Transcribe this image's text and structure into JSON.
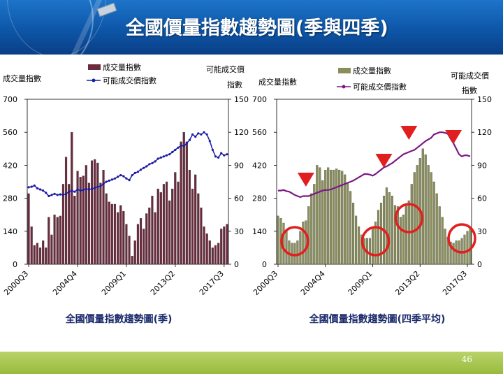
{
  "slide": {
    "title": "全國價量指數趨勢圖(季與四季)",
    "page_number": "46"
  },
  "colors": {
    "banner": "#0d56a8",
    "footer": "#a6c44d",
    "left_bar": "#6b2a3d",
    "left_line": "#1a1aa6",
    "right_bar": "#8a8f5a",
    "right_line": "#7a1a82",
    "marker_red": "#e21f1f"
  },
  "chart_data": [
    {
      "type": "bar",
      "title": "全國價量指數趨勢圖(季)",
      "ylabel": "成交量指數",
      "y2label": "可能成交價指數",
      "ylim": [
        0,
        700
      ],
      "y2lim": [
        0,
        150
      ],
      "yticks": [
        "0",
        "140",
        "280",
        "420",
        "560",
        "700"
      ],
      "y2ticks": [
        "0",
        "30",
        "60",
        "90",
        "120",
        "150"
      ],
      "x_tick_labels": [
        "2000Q3",
        "2004Q4",
        "2009Q1",
        "2013Q2",
        "2017Q3"
      ],
      "grid": false,
      "legend_position": "top",
      "series": [
        {
          "name": "成交量指數",
          "type": "bar",
          "axis": "left",
          "values": [
            300,
            160,
            80,
            90,
            70,
            100,
            70,
            200,
            125,
            210,
            200,
            205,
            340,
            455,
            340,
            560,
            290,
            395,
            370,
            375,
            420,
            345,
            440,
            445,
            430,
            345,
            400,
            300,
            265,
            255,
            255,
            220,
            250,
            225,
            170,
            120,
            35,
            100,
            170,
            195,
            150,
            215,
            240,
            290,
            220,
            320,
            305,
            340,
            350,
            270,
            320,
            390,
            350,
            520,
            560,
            520,
            400,
            320,
            380,
            300,
            240,
            160,
            130,
            100,
            70,
            80,
            90,
            150,
            160,
            170
          ]
        },
        {
          "name": "可能成交價指數",
          "type": "line",
          "axis": "right",
          "values": [
            70,
            70.5,
            71.5,
            69,
            68,
            67,
            65,
            62,
            63,
            64,
            63,
            63.5,
            63,
            64,
            66,
            67,
            66,
            68,
            67,
            67.5,
            68.5,
            68,
            68.5,
            69.5,
            70.5,
            71,
            73,
            75,
            76,
            77,
            78,
            79.5,
            81,
            80,
            78,
            76.5,
            81,
            83,
            84,
            86,
            87.5,
            89,
            91,
            92,
            93.5,
            96,
            97,
            98,
            99,
            100,
            102,
            104,
            106,
            108,
            107.5,
            110,
            113,
            118,
            116,
            119,
            118,
            120,
            118,
            112,
            104,
            98,
            97,
            101,
            99,
            100
          ]
        }
      ]
    },
    {
      "type": "bar",
      "title": "全國價量指數趨勢圖(四季平均)",
      "ylabel": "成交量指數",
      "y2label": "可能成交價指數",
      "ylim": [
        0,
        700
      ],
      "y2lim": [
        0,
        150
      ],
      "yticks": [
        "0",
        "140",
        "280",
        "420",
        "560",
        "700"
      ],
      "y2ticks": [
        "0",
        "30",
        "60",
        "90",
        "120",
        "150"
      ],
      "x_tick_labels": [
        "2000Q3",
        "2004Q4",
        "2009Q1",
        "2013Q2",
        "2017Q3"
      ],
      "grid": false,
      "legend_position": "top",
      "annotations": [
        "red downward triangles at 2002Q4, 2009Q1, 2012Q3, 2016Q2",
        "red circles around volume lows near 2001-2003, 2008-2009, 2012 and 2016-2017"
      ],
      "series": [
        {
          "name": "成交量指數",
          "type": "bar",
          "axis": "left",
          "values": [
            205,
            195,
            175,
            140,
            100,
            90,
            90,
            100,
            140,
            180,
            185,
            245,
            300,
            340,
            420,
            410,
            355,
            400,
            410,
            400,
            400,
            405,
            400,
            395,
            380,
            345,
            310,
            260,
            205,
            160,
            125,
            110,
            110,
            110,
            150,
            180,
            230,
            260,
            290,
            325,
            305,
            290,
            250,
            245,
            200,
            210,
            250,
            270,
            340,
            390,
            420,
            450,
            490,
            465,
            420,
            390,
            350,
            300,
            245,
            200,
            150,
            115,
            95,
            90,
            100,
            100,
            110,
            125,
            140,
            160
          ]
        },
        {
          "name": "可能成交價指數",
          "type": "line",
          "axis": "right",
          "values": [
            67,
            67,
            67.5,
            66.5,
            66,
            64.5,
            63,
            62,
            61,
            62,
            62,
            62,
            63,
            64,
            65,
            66,
            67,
            67.5,
            67.5,
            68,
            69,
            70,
            71,
            72,
            73,
            74,
            75,
            76,
            77.5,
            79,
            80.5,
            82,
            82,
            81.5,
            80.5,
            82,
            84,
            86,
            88,
            89,
            90.5,
            92,
            94,
            96,
            98,
            100,
            101,
            102,
            103,
            104,
            106,
            108,
            110,
            112,
            113.5,
            115,
            118,
            119,
            120,
            120,
            119.5,
            118.5,
            114,
            110,
            105,
            100,
            98,
            99,
            99,
            98
          ]
        }
      ]
    }
  ],
  "charts": [
    {
      "caption": "全國價量指數趨勢圖(季)",
      "left_axis_title": "成交量指數",
      "right_axis_title_line1": "可能成交價",
      "right_axis_title_line2": "指數",
      "legend": [
        "成交量指數",
        "可能成交價指數"
      ]
    },
    {
      "caption": "全國價量指數趨勢圖(四季平均)",
      "left_axis_title": "成交量指數",
      "right_axis_title_line1": "可能成交價",
      "right_axis_title_line2": "指數",
      "legend": [
        "成交量指數",
        "可能成交價指數"
      ]
    }
  ]
}
